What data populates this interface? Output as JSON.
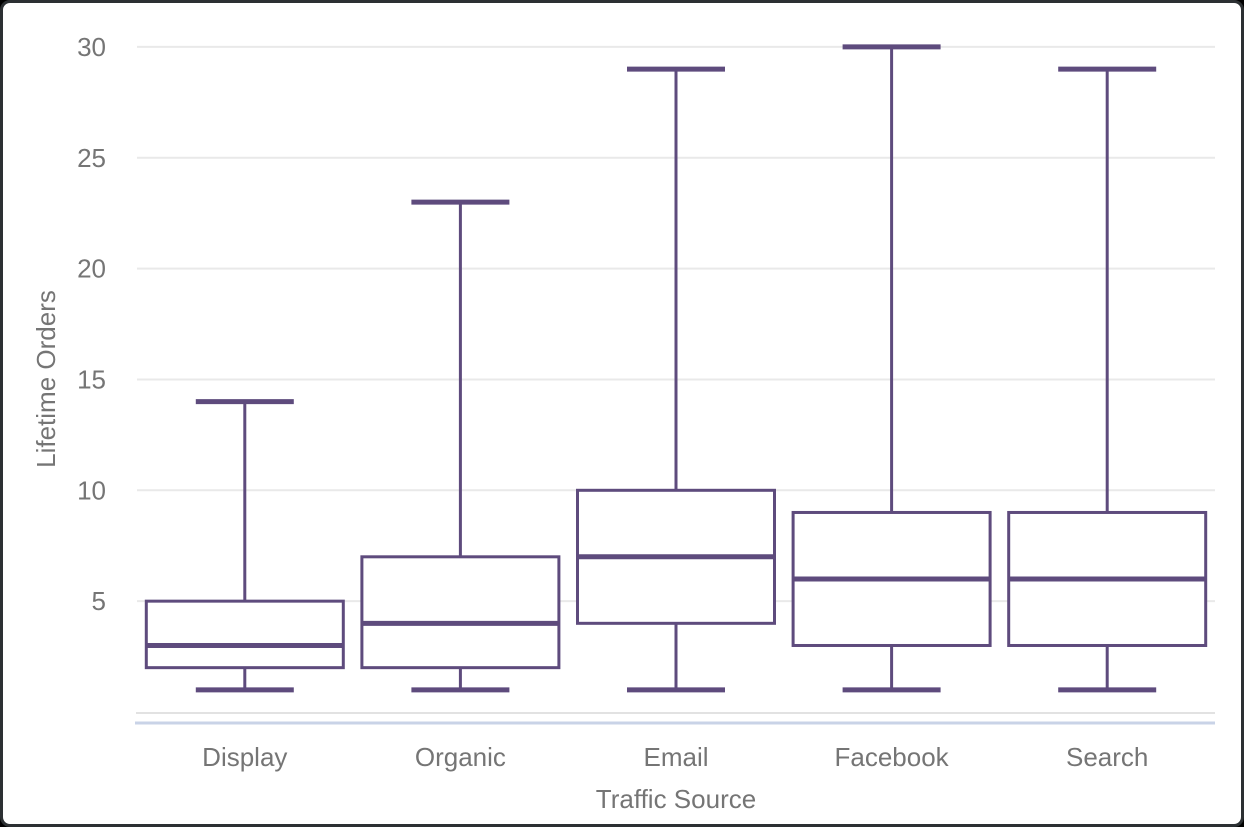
{
  "frame": {
    "background": "#ffffff",
    "border_color": "#2c3033"
  },
  "chart_data": {
    "type": "boxplot",
    "title": "",
    "xlabel": "Traffic Source",
    "ylabel": "Lifetime Orders",
    "categories": [
      "Display",
      "Organic",
      "Email",
      "Facebook",
      "Search"
    ],
    "series": [
      {
        "name": "Display",
        "min": 1,
        "q1": 2,
        "median": 3,
        "q3": 5,
        "max": 14
      },
      {
        "name": "Organic",
        "min": 1,
        "q1": 2,
        "median": 4,
        "q3": 7,
        "max": 23
      },
      {
        "name": "Email",
        "min": 1,
        "q1": 4,
        "median": 7,
        "q3": 10,
        "max": 29
      },
      {
        "name": "Facebook",
        "min": 1,
        "q1": 3,
        "median": 6,
        "q3": 9,
        "max": 30
      },
      {
        "name": "Search",
        "min": 1,
        "q1": 3,
        "median": 6,
        "q3": 9,
        "max": 29
      }
    ],
    "y_ticks": [
      5,
      10,
      15,
      20,
      25,
      30
    ],
    "ylim": [
      0,
      31
    ],
    "grid": true,
    "legend": "none",
    "colors": {
      "box_stroke": "#5e4b7d",
      "box_fill": "#ffffff",
      "grid_line": "#e9e9e9",
      "axis_baseline": "#e2e2e2",
      "baseline_accent": "#c9d3e7",
      "tick_text": "#757575"
    }
  }
}
